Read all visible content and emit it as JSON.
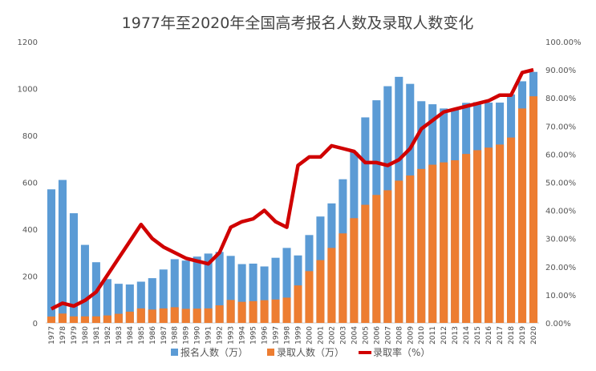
{
  "chart_data": {
    "type": "bar+line",
    "title": "1977年至2020年全国高考报名人数及录取人数变化",
    "categories": [
      "1977",
      "1978",
      "1979",
      "1980",
      "1981",
      "1982",
      "1983",
      "1984",
      "1985",
      "1986",
      "1987",
      "1988",
      "1989",
      "1990",
      "1991",
      "1992",
      "1993",
      "1994",
      "1995",
      "1996",
      "1997",
      "1998",
      "1999",
      "2000",
      "2001",
      "2002",
      "2003",
      "2004",
      "2005",
      "2006",
      "2007",
      "2008",
      "2009",
      "2010",
      "2011",
      "2012",
      "2013",
      "2014",
      "2015",
      "2016",
      "2017",
      "2018",
      "2019",
      "2020"
    ],
    "category_labels": [
      "1977",
      "1978",
      "1979",
      "1980",
      "1981",
      "1982",
      "1983",
      "1984",
      "1985",
      "1986",
      "1987",
      "1988",
      "1989",
      "1990",
      "1991",
      "1992",
      "1993",
      "1994",
      "1995",
      "1996",
      "1997",
      "1998",
      "1999",
      "2000",
      "2001",
      "2002",
      "2003",
      "2004",
      "2005",
      "2006",
      "2007",
      "2008",
      "2009",
      "2010",
      "2011",
      "2012",
      "2013",
      "2014",
      "2015",
      "2016",
      "2017",
      "2018",
      "2019",
      "2020"
    ],
    "series": [
      {
        "name": "报名人数（万）",
        "type": "bar",
        "axis": "left",
        "color": "#5b9bd5",
        "values": [
          570,
          610,
          468,
          333,
          259,
          187,
          167,
          164,
          176,
          191,
          228,
          272,
          266,
          283,
          296,
          303,
          286,
          251,
          253,
          241,
          278,
          320,
          288,
          375,
          454,
          510,
          613,
          729,
          877,
          950,
          1010,
          1050,
          1020,
          946,
          933,
          915,
          912,
          939,
          942,
          940,
          940,
          975,
          1031,
          1071
        ]
      },
      {
        "name": "录取人数（万）",
        "type": "bar",
        "axis": "left",
        "color": "#ed7d31",
        "values": [
          27,
          40,
          28,
          28,
          28,
          32,
          39,
          48,
          62,
          57,
          62,
          67,
          60,
          61,
          62,
          75,
          98,
          90,
          93,
          97,
          100,
          108,
          160,
          221,
          268,
          320,
          382,
          447,
          504,
          546,
          566,
          607,
          629,
          657,
          675,
          685,
          694,
          721,
          737,
          748,
          761,
          791,
          915,
          967
        ]
      },
      {
        "name": "录取率（%）",
        "type": "line",
        "axis": "right",
        "color": "#d00000",
        "values": [
          5,
          7,
          6,
          8,
          11,
          17,
          23,
          29,
          35,
          30,
          27,
          25,
          23,
          22,
          21,
          25,
          34,
          36,
          37,
          40,
          36,
          34,
          56,
          59,
          59,
          63,
          62,
          61,
          57,
          57,
          56,
          58,
          62,
          69,
          72,
          75,
          76,
          77,
          78,
          79,
          81,
          81,
          89,
          90
        ]
      }
    ],
    "left_axis": {
      "ticks": [
        "0",
        "200",
        "400",
        "600",
        "800",
        "1000",
        "1200"
      ],
      "range": [
        0,
        1200
      ]
    },
    "right_axis": {
      "ticks": [
        "0.00%",
        "10.00%",
        "20.00%",
        "30.00%",
        "40.00%",
        "50.00%",
        "60.00%",
        "70.00%",
        "80.00%",
        "90.00%",
        "100.00%"
      ],
      "range": [
        0,
        100
      ]
    },
    "grid": false,
    "legend_position": "bottom"
  }
}
